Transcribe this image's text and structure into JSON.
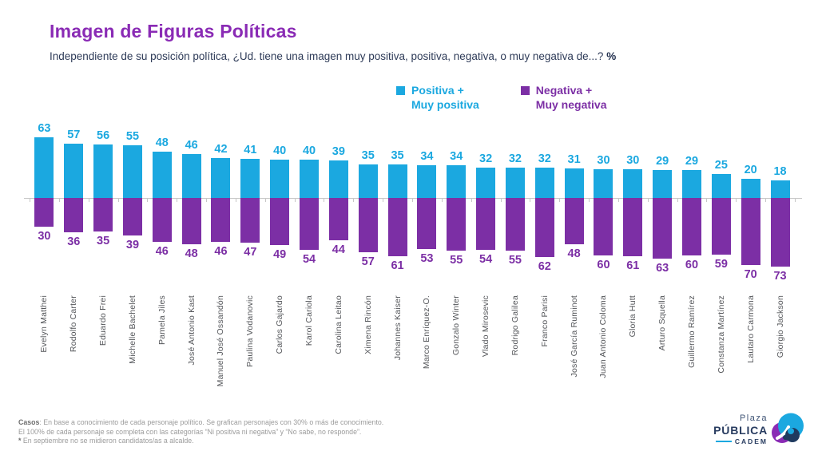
{
  "header": {
    "title": "Imagen de Figuras Políticas",
    "subtitle": "Independiente de su posición política, ¿Ud. tiene una imagen muy positiva, positiva, negativa, o muy negativa de...? ",
    "subtitle_suffix": "%"
  },
  "legend": {
    "positive": {
      "line1": "Positiva +",
      "line2": "Muy positiva",
      "color": "#1BA8E0"
    },
    "negative": {
      "line1": "Negativa +",
      "line2": "Muy negativa",
      "color": "#7C2FA5"
    }
  },
  "chart_data": {
    "type": "bar",
    "subtype": "diverging-vertical",
    "title": "Imagen de Figuras Políticas",
    "unit": "%",
    "grid": false,
    "legend_position": "top-center",
    "value_labels": true,
    "ylim": [
      -80,
      70
    ],
    "categories": [
      "Evelyn Matthei",
      "Rodolfo Carter",
      "Eduardo Frei",
      "Michelle Bachelet",
      "Pamela Jiles",
      "José Antonio Kast",
      "Manuel José Ossandón",
      "Paulina Vodanovic",
      "Carlos Gajardo",
      "Karol Cariola",
      "Carolina Leitao",
      "Ximena Rincón",
      "Johannes Kaiser",
      "Marco Enríquez-O.",
      "Gonzalo Winter",
      "Vlado Mirosevic",
      "Rodrigo Galilea",
      "Franco Parisi",
      "José García Ruminot",
      "Juan Antonio Coloma",
      "Gloria Hutt",
      "Arturo Squella",
      "Guillermo Ramírez",
      "Constanza Martínez",
      "Lautaro Carmona",
      "Giorgio Jackson"
    ],
    "series": [
      {
        "name": "Positiva + Muy positiva",
        "color": "#1BA8E0",
        "direction": "up",
        "values": [
          63,
          57,
          56,
          55,
          48,
          46,
          42,
          41,
          40,
          40,
          39,
          35,
          35,
          34,
          34,
          32,
          32,
          32,
          31,
          30,
          30,
          29,
          29,
          25,
          20,
          18
        ]
      },
      {
        "name": "Negativa + Muy negativa",
        "color": "#7C2FA5",
        "direction": "down",
        "values": [
          30,
          36,
          35,
          39,
          46,
          48,
          46,
          47,
          49,
          54,
          44,
          57,
          61,
          53,
          55,
          54,
          55,
          62,
          48,
          60,
          61,
          63,
          60,
          59,
          70,
          73
        ]
      }
    ]
  },
  "footer": {
    "note1_label": "Casos",
    "note1_text": ": En base a conocimiento de cada personaje político. Se grafican personajes con 30% o más de conocimiento.",
    "note2": "El 100% de cada personaje se completa con las categorías “Ni positiva ni negativa” y “No sabe, no responde”.",
    "note3_label": "*",
    "note3_text": " En septiembre no se midieron candidatos/as a alcalde."
  },
  "logo": {
    "plaza": "Plaza",
    "publica": "PÚBLICA",
    "cadem": "CADEM"
  }
}
